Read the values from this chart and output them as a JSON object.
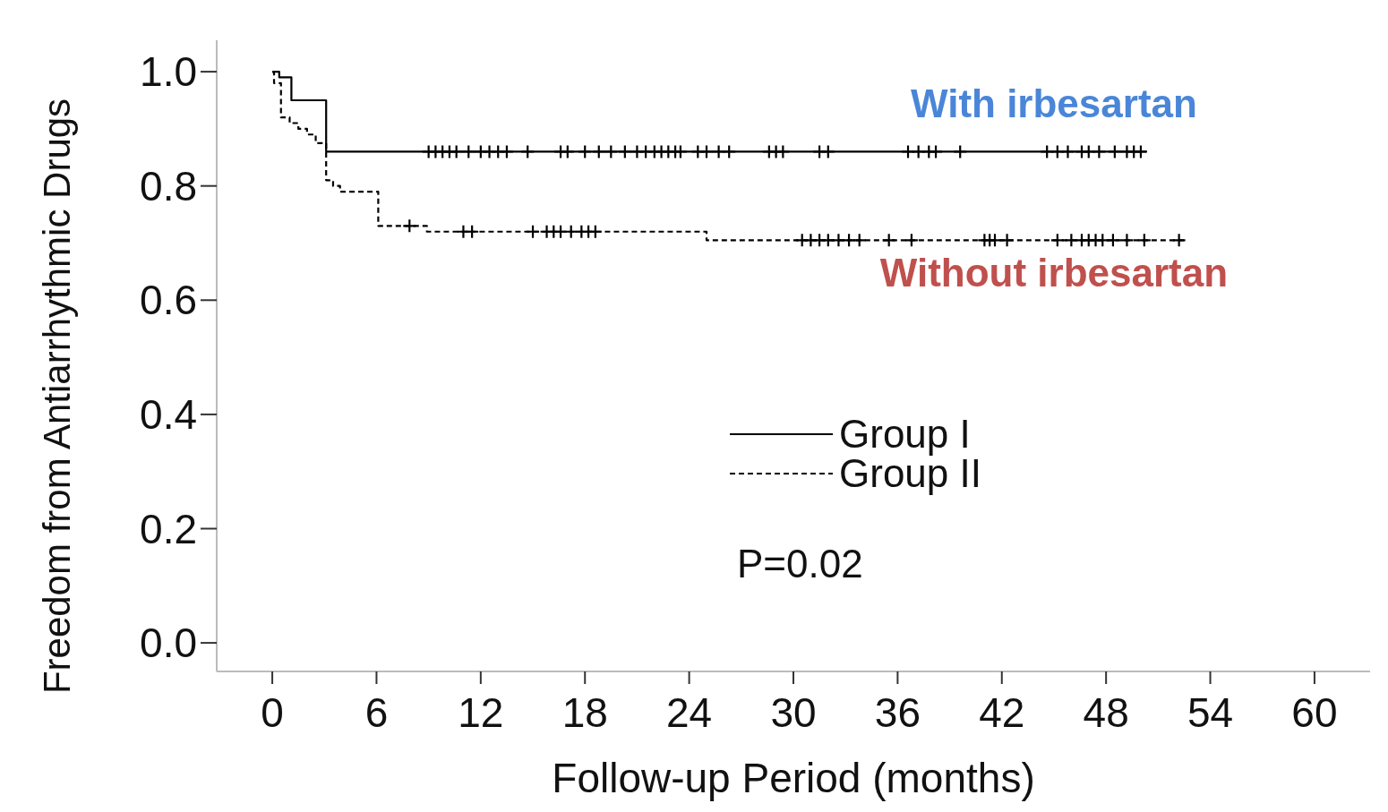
{
  "chart_data": {
    "type": "step",
    "xlabel": "Follow-up Period (months)",
    "ylabel": "Freedom from Antiarrhythmic Drugs",
    "xlim": [
      -3.2,
      63.2
    ],
    "xticks": [
      0,
      6,
      12,
      18,
      24,
      30,
      36,
      42,
      48,
      54,
      60
    ],
    "ylim": [
      -0.05,
      1.055
    ],
    "yticks": [
      {
        "value": 0,
        "label": "0.0"
      },
      {
        "value": 0.2,
        "label": "0.2"
      },
      {
        "value": 0.4,
        "label": "0.4"
      },
      {
        "value": 0.6,
        "label": "0.6"
      },
      {
        "value": 0.8,
        "label": "0.8"
      },
      {
        "value": 1,
        "label": "1.0"
      }
    ],
    "legend": "center",
    "series": [
      {
        "name": "Group I",
        "color": "#000000",
        "line_style": "solid",
        "x": [
          0,
          0.4,
          1.1,
          3.1,
          50.3
        ],
        "values": [
          1.0,
          0.99,
          0.95,
          0.86,
          0.86
        ]
      },
      {
        "name": "Group II",
        "color": "#000000",
        "line_style": "dashed",
        "x": [
          0,
          0.1,
          0.5,
          1.0,
          1.5,
          2.0,
          2.5,
          3.1,
          3.5,
          3.9,
          6.1,
          8.9,
          25.0,
          52.6
        ],
        "values": [
          1.0,
          0.98,
          0.92,
          0.91,
          0.9,
          0.89,
          0.875,
          0.81,
          0.8,
          0.79,
          0.73,
          0.72,
          0.705,
          0.705
        ]
      },
      {
        "type": "scatter",
        "color": "#000000",
        "marker": "cross",
        "x": [
          9.0,
          9.4,
          9.8,
          10.2,
          10.6,
          11.3,
          12.0,
          12.5,
          13.0,
          13.5,
          14.7,
          16.6,
          17.0,
          18.0,
          18.8,
          19.5,
          20.3,
          21.0,
          21.5,
          22.0,
          22.4,
          22.8,
          23.2,
          23.5,
          24.5,
          25.0,
          25.7,
          26.3,
          28.6,
          29.0,
          29.4,
          31.5,
          32.0,
          36.6,
          37.2,
          37.8,
          38.2,
          39.6,
          44.6,
          45.2,
          45.8,
          46.6,
          47.0,
          47.6,
          48.5,
          49.2,
          49.6,
          50.0
        ],
        "values": [
          0.86,
          0.86,
          0.86,
          0.86,
          0.86,
          0.86,
          0.86,
          0.86,
          0.86,
          0.86,
          0.86,
          0.86,
          0.86,
          0.86,
          0.86,
          0.86,
          0.86,
          0.86,
          0.86,
          0.86,
          0.86,
          0.86,
          0.86,
          0.86,
          0.86,
          0.86,
          0.86,
          0.86,
          0.86,
          0.86,
          0.86,
          0.86,
          0.86,
          0.86,
          0.86,
          0.86,
          0.86,
          0.86,
          0.86,
          0.86,
          0.86,
          0.86,
          0.86,
          0.86,
          0.86,
          0.86,
          0.86,
          0.86
        ]
      },
      {
        "type": "scatter",
        "color": "#000000",
        "marker": "cross",
        "x": [
          7.9,
          11.0,
          11.5,
          15.0,
          15.8,
          16.2,
          16.6,
          17.2,
          17.8,
          18.2,
          18.6,
          30.5,
          31.0,
          31.5,
          32.0,
          32.6,
          33.2,
          33.8,
          35.5,
          36.8,
          41.0,
          41.3,
          41.6,
          42.3,
          45.2,
          46.0,
          46.6,
          47.0,
          47.4,
          47.8,
          48.4,
          49.2,
          50.2,
          52.2
        ],
        "values": [
          0.73,
          0.72,
          0.72,
          0.72,
          0.72,
          0.72,
          0.72,
          0.72,
          0.72,
          0.72,
          0.72,
          0.705,
          0.705,
          0.705,
          0.705,
          0.705,
          0.705,
          0.705,
          0.705,
          0.705,
          0.705,
          0.705,
          0.705,
          0.705,
          0.705,
          0.705,
          0.705,
          0.705,
          0.705,
          0.705,
          0.705,
          0.705,
          0.705,
          0.705
        ]
      }
    ],
    "annotations": [
      {
        "text": "With irbesartan",
        "x": 45,
        "y": 0.86
      },
      {
        "text": "Without irbesartan",
        "x": 45,
        "y": 0.705
      },
      "P=0.02"
    ]
  }
}
